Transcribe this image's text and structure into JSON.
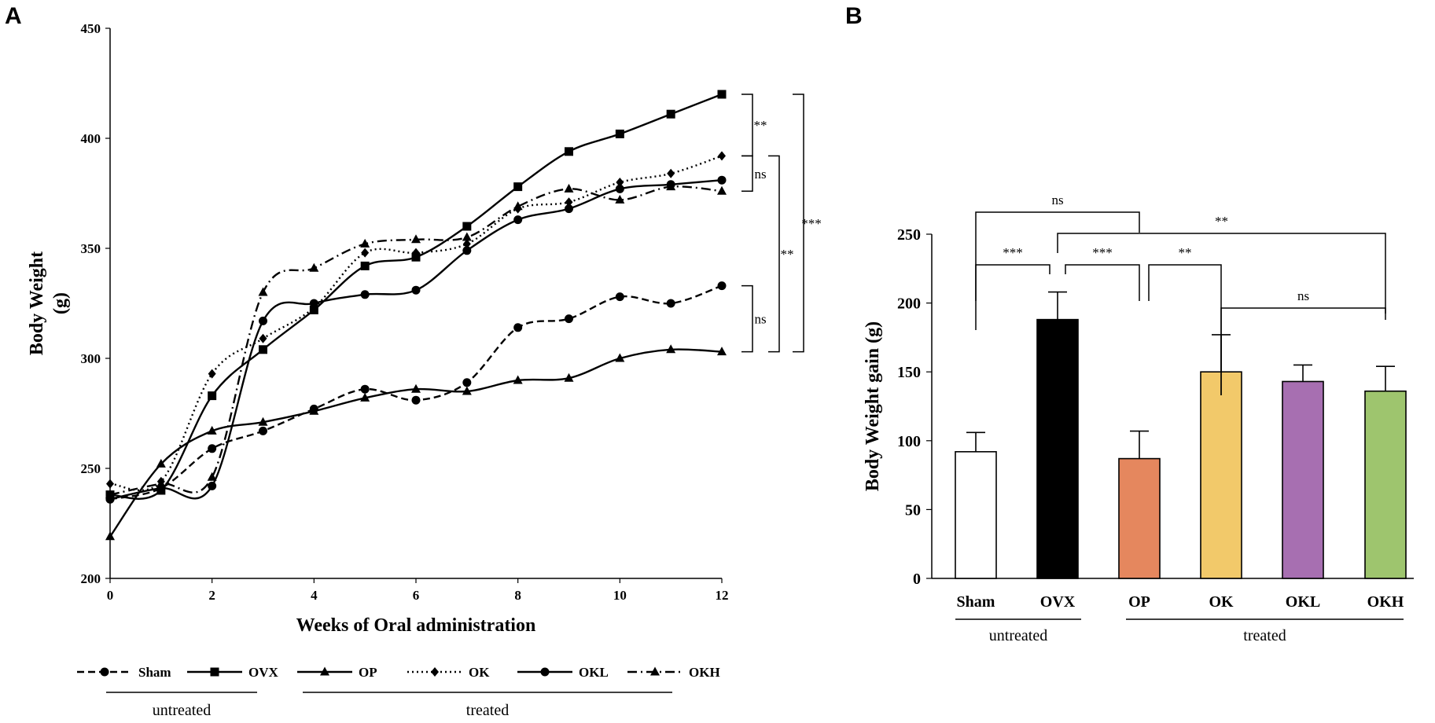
{
  "chart_data": [
    {
      "panel": "A",
      "type": "line",
      "xlabel": "Weeks of Oral administration",
      "ylabel": "Body Weight (g)",
      "ylabel_lines": [
        "Body Weight",
        "(g)"
      ],
      "xlim": [
        0,
        12
      ],
      "ylim": [
        200,
        450
      ],
      "x_ticks": [
        0,
        2,
        4,
        6,
        8,
        10,
        12
      ],
      "y_ticks": [
        200,
        250,
        300,
        350,
        400,
        450
      ],
      "x": [
        0,
        1,
        2,
        3,
        4,
        5,
        6,
        7,
        8,
        9,
        10,
        11,
        12
      ],
      "series": [
        {
          "name": "Sham",
          "marker": "circle",
          "dash": "dashed",
          "values": [
            236,
            241,
            259,
            267,
            277,
            286,
            281,
            289,
            314,
            318,
            328,
            325,
            333
          ]
        },
        {
          "name": "OVX",
          "marker": "square",
          "dash": "solid",
          "values": [
            238,
            240,
            283,
            304,
            322,
            342,
            346,
            360,
            378,
            394,
            402,
            411,
            420
          ]
        },
        {
          "name": "OP",
          "marker": "triangle",
          "dash": "solid",
          "values": [
            219,
            252,
            267,
            271,
            276,
            282,
            286,
            285,
            290,
            291,
            300,
            304,
            303
          ]
        },
        {
          "name": "OK",
          "marker": "diamond",
          "dash": "dotted",
          "values": [
            243,
            244,
            293,
            309,
            323,
            348,
            348,
            352,
            368,
            371,
            380,
            384,
            392
          ]
        },
        {
          "name": "OKL",
          "marker": "circle",
          "dash": "solid",
          "values": [
            236,
            241,
            242,
            317,
            325,
            329,
            331,
            349,
            363,
            368,
            377,
            379,
            381
          ]
        },
        {
          "name": "OKH",
          "marker": "triangle",
          "dash": "dashdot",
          "values": [
            238,
            243,
            246,
            330,
            341,
            352,
            354,
            355,
            369,
            377,
            372,
            378,
            376
          ]
        }
      ],
      "significance": [
        {
          "label": "ns",
          "between": [
            "OK",
            "OKH"
          ]
        },
        {
          "label": "**",
          "between": [
            "OVX",
            "OK"
          ]
        },
        {
          "label": "ns",
          "between": [
            "Sham",
            "OP"
          ]
        },
        {
          "label": "**",
          "between": [
            "OK",
            "OP"
          ]
        },
        {
          "label": "***",
          "between": [
            "OVX",
            "OP"
          ]
        }
      ],
      "legend_groups": [
        {
          "label": "untreated",
          "members": [
            "Sham",
            "OVX"
          ]
        },
        {
          "label": "treated",
          "members": [
            "OP",
            "OK",
            "OKL",
            "OKH"
          ]
        }
      ]
    },
    {
      "panel": "B",
      "type": "bar",
      "ylabel": "Body Weight gain (g)",
      "ylim": [
        0,
        250
      ],
      "y_ticks": [
        0,
        50,
        100,
        150,
        200,
        250
      ],
      "categories": [
        "Sham",
        "OVX",
        "OP",
        "OK",
        "OKL",
        "OKH"
      ],
      "values": [
        92,
        188,
        87,
        150,
        143,
        136
      ],
      "errors": [
        14,
        20,
        20,
        27,
        12,
        18
      ],
      "colors": [
        "#ffffff",
        "#000000",
        "#e5875e",
        "#f2c96a",
        "#a76fb1",
        "#9ec56e"
      ],
      "significance": [
        {
          "label": "ns",
          "from": "Sham",
          "to": "OP"
        },
        {
          "label": "**",
          "from": "OVX",
          "to": "OKH"
        },
        {
          "label": "***",
          "from": "Sham",
          "to": "OVX"
        },
        {
          "label": "***",
          "from": "OVX",
          "to": "OP"
        },
        {
          "label": "**",
          "from": "OP",
          "to": "OK"
        },
        {
          "label": "ns",
          "from": "OK",
          "to": "OKH"
        }
      ],
      "groups": [
        {
          "label": "untreated",
          "members": [
            "Sham",
            "OVX"
          ]
        },
        {
          "label": "treated",
          "members": [
            "OP",
            "OK",
            "OKL",
            "OKH"
          ]
        }
      ]
    }
  ]
}
